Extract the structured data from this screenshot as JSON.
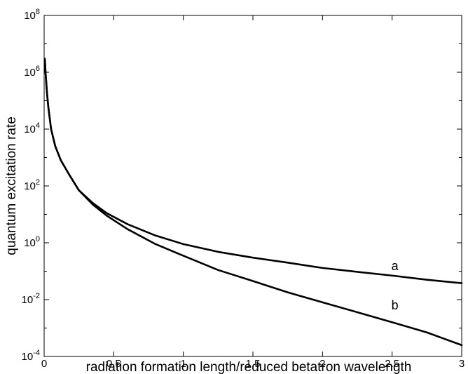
{
  "chart_data": {
    "type": "line",
    "title": "",
    "xlabel": "radiation formation length/reduced betatron wavelength",
    "ylabel": "quantum excitation rate",
    "xlim": [
      0,
      3
    ],
    "ylim": [
      0.0001,
      100000000
    ],
    "yscale": "log",
    "grid": false,
    "x_ticks": [
      0,
      0.5,
      1,
      1.5,
      2,
      2.5,
      3
    ],
    "x_tick_labels": [
      "0",
      "0.5",
      "1",
      "1.5",
      "2",
      "2.5",
      "3"
    ],
    "y_ticks": [
      0.0001,
      0.01,
      1,
      100,
      10000,
      1000000,
      100000000
    ],
    "y_tick_labels": [
      {
        "base": "10",
        "exp": "-4"
      },
      {
        "base": "10",
        "exp": "-2"
      },
      {
        "base": "10",
        "exp": "0"
      },
      {
        "base": "10",
        "exp": "2"
      },
      {
        "base": "10",
        "exp": "4"
      },
      {
        "base": "10",
        "exp": "6"
      },
      {
        "base": "10",
        "exp": "8"
      }
    ],
    "series": [
      {
        "name": "a",
        "x": [
          0.005,
          0.01,
          0.02,
          0.03,
          0.05,
          0.08,
          0.12,
          0.18,
          0.25,
          0.35,
          0.45,
          0.6,
          0.8,
          1.0,
          1.25,
          1.5,
          1.75,
          2.0,
          2.25,
          2.5,
          2.75,
          3.0
        ],
        "y": [
          3000000,
          1000000,
          200000,
          60000,
          10000,
          2500,
          800,
          250,
          70,
          25,
          11,
          4.5,
          1.8,
          0.9,
          0.48,
          0.3,
          0.2,
          0.13,
          0.095,
          0.07,
          0.05,
          0.038
        ]
      },
      {
        "name": "b",
        "x": [
          0.005,
          0.01,
          0.02,
          0.03,
          0.05,
          0.08,
          0.12,
          0.18,
          0.25,
          0.35,
          0.45,
          0.6,
          0.8,
          1.0,
          1.25,
          1.5,
          1.75,
          2.0,
          2.25,
          2.5,
          2.75,
          3.0
        ],
        "y": [
          3000000,
          1000000,
          200000,
          60000,
          10000,
          2500,
          800,
          250,
          70,
          22,
          9,
          3,
          0.9,
          0.35,
          0.11,
          0.045,
          0.018,
          0.008,
          0.0036,
          0.0016,
          0.0007,
          0.00025
        ]
      }
    ],
    "series_labels": [
      {
        "text": "a",
        "x": 2.52,
        "y": 0.11
      },
      {
        "text": "b",
        "x": 2.52,
        "y": 0.0045
      }
    ]
  }
}
